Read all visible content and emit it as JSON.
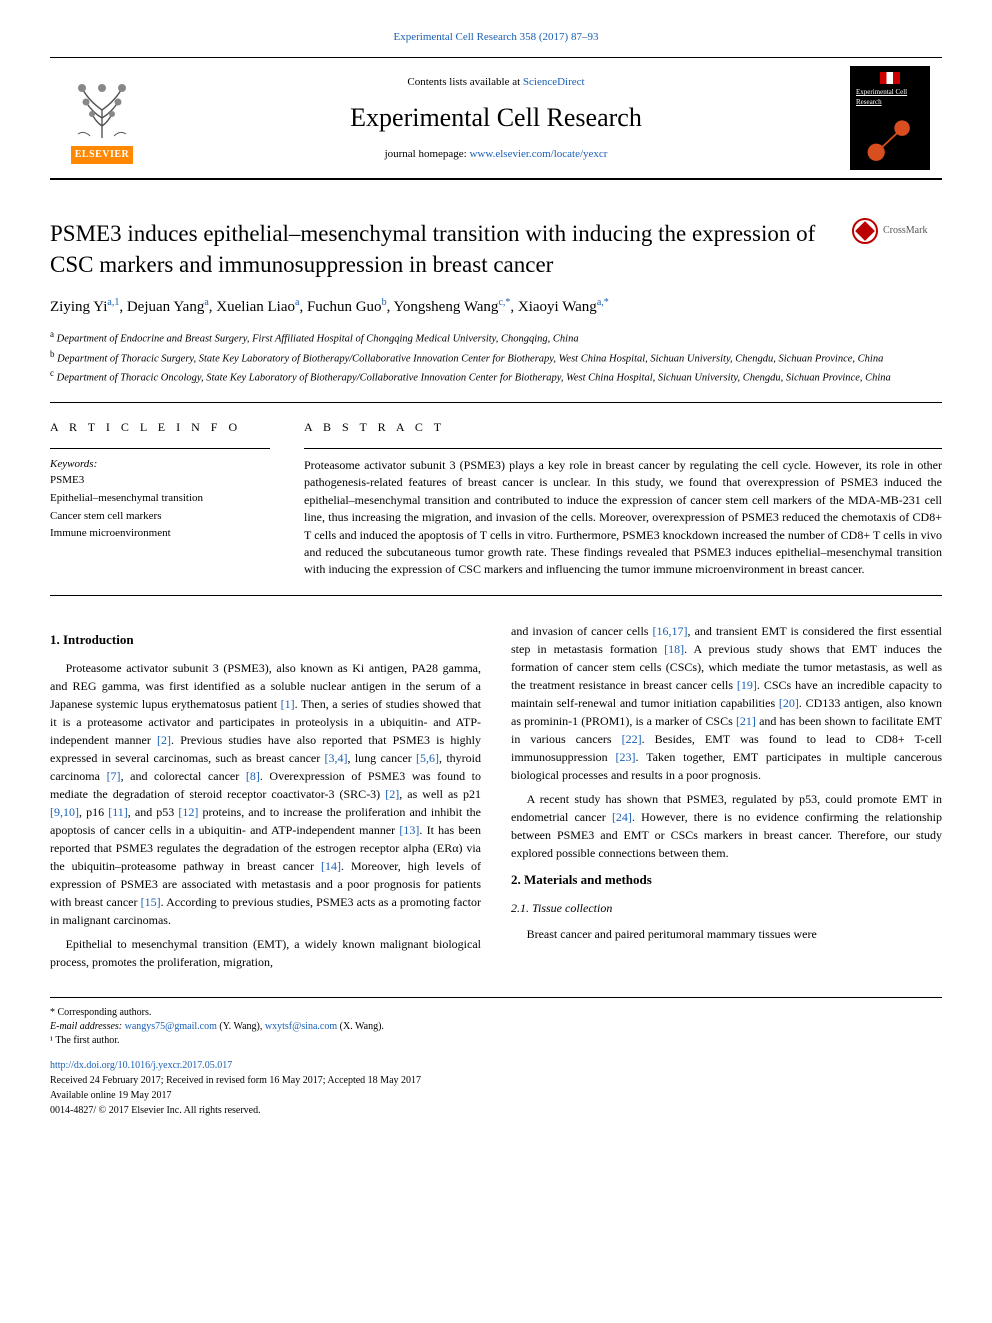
{
  "header": {
    "top_citation": "Experimental Cell Research 358 (2017) 87–93",
    "contents_prefix": "Contents lists available at ",
    "contents_link": "ScienceDirect",
    "journal_name": "Experimental Cell Research",
    "homepage_prefix": "journal homepage: ",
    "homepage_url": "www.elsevier.com/locate/yexcr",
    "publisher_name": "ELSEVIER",
    "cover_journal_label": "Experimental Cell Research"
  },
  "colors": {
    "link": "#1a5fb4",
    "elsevier_orange": "#ff8800",
    "crossmark_red": "#b00020",
    "text": "#000000",
    "background": "#ffffff"
  },
  "typography": {
    "journal_name_size": 26,
    "article_title_size": 23,
    "author_size": 15,
    "body_size": 12,
    "footnote_size": 10
  },
  "crossmark_label": "CrossMark",
  "article": {
    "title": "PSME3 induces epithelial–mesenchymal transition with inducing the expression of CSC markers and immunosuppression in breast cancer",
    "authors_html": "Ziying Yi<a,1>, Dejuan Yang<a>, Xuelian Liao<a>, Fuchun Guo<b>, Yongsheng Wang<c,*>, Xiaoyi Wang<a,*>",
    "authors": [
      {
        "name": "Ziying Yi",
        "marks": "a,1"
      },
      {
        "name": "Dejuan Yang",
        "marks": "a"
      },
      {
        "name": "Xuelian Liao",
        "marks": "a"
      },
      {
        "name": "Fuchun Guo",
        "marks": "b"
      },
      {
        "name": "Yongsheng Wang",
        "marks": "c,*"
      },
      {
        "name": "Xiaoyi Wang",
        "marks": "a,*"
      }
    ],
    "affiliations": [
      {
        "mark": "a",
        "text": "Department of Endocrine and Breast Surgery, First Affiliated Hospital of Chongqing Medical University, Chongqing, China"
      },
      {
        "mark": "b",
        "text": "Department of Thoracic Surgery, State Key Laboratory of Biotherapy/Collaborative Innovation Center for Biotherapy, West China Hospital, Sichuan University, Chengdu, Sichuan Province, China"
      },
      {
        "mark": "c",
        "text": "Department of Thoracic Oncology, State Key Laboratory of Biotherapy/Collaborative Innovation Center for Biotherapy, West China Hospital, Sichuan University, Chengdu, Sichuan Province, China"
      }
    ]
  },
  "article_info": {
    "heading": "A R T I C L E  I N F O",
    "keywords_label": "Keywords:",
    "keywords": [
      "PSME3",
      "Epithelial–mesenchymal transition",
      "Cancer stem cell markers",
      "Immune microenvironment"
    ]
  },
  "abstract": {
    "heading": "A B S T R A C T",
    "text": "Proteasome activator subunit 3 (PSME3) plays a key role in breast cancer by regulating the cell cycle. However, its role in other pathogenesis-related features of breast cancer is unclear. In this study, we found that overexpression of PSME3 induced the epithelial–mesenchymal transition and contributed to induce the expression of cancer stem cell markers of the MDA-MB-231 cell line, thus increasing the migration, and invasion of the cells. Moreover, overexpression of PSME3 reduced the chemotaxis of CD8+ T cells and induced the apoptosis of T cells in vitro. Furthermore, PSME3 knockdown increased the number of CD8+ T cells in vivo and reduced the subcutaneous tumor growth rate. These findings revealed that PSME3 induces epithelial–mesenchymal transition with inducing the expression of CSC markers and influencing the tumor immune microenvironment in breast cancer."
  },
  "sections": {
    "intro_heading": "1. Introduction",
    "intro_p1": "Proteasome activator subunit 3 (PSME3), also known as Ki antigen, PA28 gamma, and REG gamma, was first identified as a soluble nuclear antigen in the serum of a Japanese systemic lupus erythematosus patient [1]. Then, a series of studies showed that it is a proteasome activator and participates in proteolysis in a ubiquitin- and ATP-independent manner [2]. Previous studies have also reported that PSME3 is highly expressed in several carcinomas, such as breast cancer [3,4], lung cancer [5,6], thyroid carcinoma [7], and colorectal cancer [8]. Overexpression of PSME3 was found to mediate the degradation of steroid receptor coactivator-3 (SRC-3) [2], as well as p21 [9,10], p16 [11], and p53 [12] proteins, and to increase the proliferation and inhibit the apoptosis of cancer cells in a ubiquitin- and ATP-independent manner [13]. It has been reported that PSME3 regulates the degradation of the estrogen receptor alpha (ERα) via the ubiquitin–proteasome pathway in breast cancer [14]. Moreover, high levels of expression of PSME3 are associated with metastasis and a poor prognosis for patients with breast cancer [15]. According to previous studies, PSME3 acts as a promoting factor in malignant carcinomas.",
    "intro_p2": "Epithelial to mesenchymal transition (EMT), a widely known malignant biological process, promotes the proliferation, migration,",
    "intro_p3": "and invasion of cancer cells [16,17], and transient EMT is considered the first essential step in metastasis formation [18]. A previous study shows that EMT induces the formation of cancer stem cells (CSCs), which mediate the tumor metastasis, as well as the treatment resistance in breast cancer cells [19]. CSCs have an incredible capacity to maintain self-renewal and tumor initiation capabilities [20]. CD133 antigen, also known as prominin-1 (PROM1), is a marker of CSCs [21] and has been shown to facilitate EMT in various cancers [22]. Besides, EMT was found to lead to CD8+ T-cell immunosuppression [23]. Taken together, EMT participates in multiple cancerous biological processes and results in a poor prognosis.",
    "intro_p4": "A recent study has shown that PSME3, regulated by p53, could promote EMT in endometrial cancer [24]. However, there is no evidence confirming the relationship between PSME3 and EMT or CSCs markers in breast cancer. Therefore, our study explored possible connections between them.",
    "methods_heading": "2. Materials and methods",
    "tissue_heading": "2.1. Tissue collection",
    "tissue_p1": "Breast cancer and paired peritumoral mammary tissues were"
  },
  "footnotes": {
    "corresponding": "* Corresponding authors.",
    "emails_label": "E-mail addresses: ",
    "email1": "wangys75@gmail.com",
    "email1_name": " (Y. Wang), ",
    "email2": "wxytsf@sina.com",
    "email2_name": " (X. Wang).",
    "first_author": "¹ The first author.",
    "doi": "http://dx.doi.org/10.1016/j.yexcr.2017.05.017",
    "received": "Received 24 February 2017; Received in revised form 16 May 2017; Accepted 18 May 2017",
    "available": "Available online 19 May 2017",
    "copyright": "0014-4827/ © 2017 Elsevier Inc. All rights reserved."
  }
}
